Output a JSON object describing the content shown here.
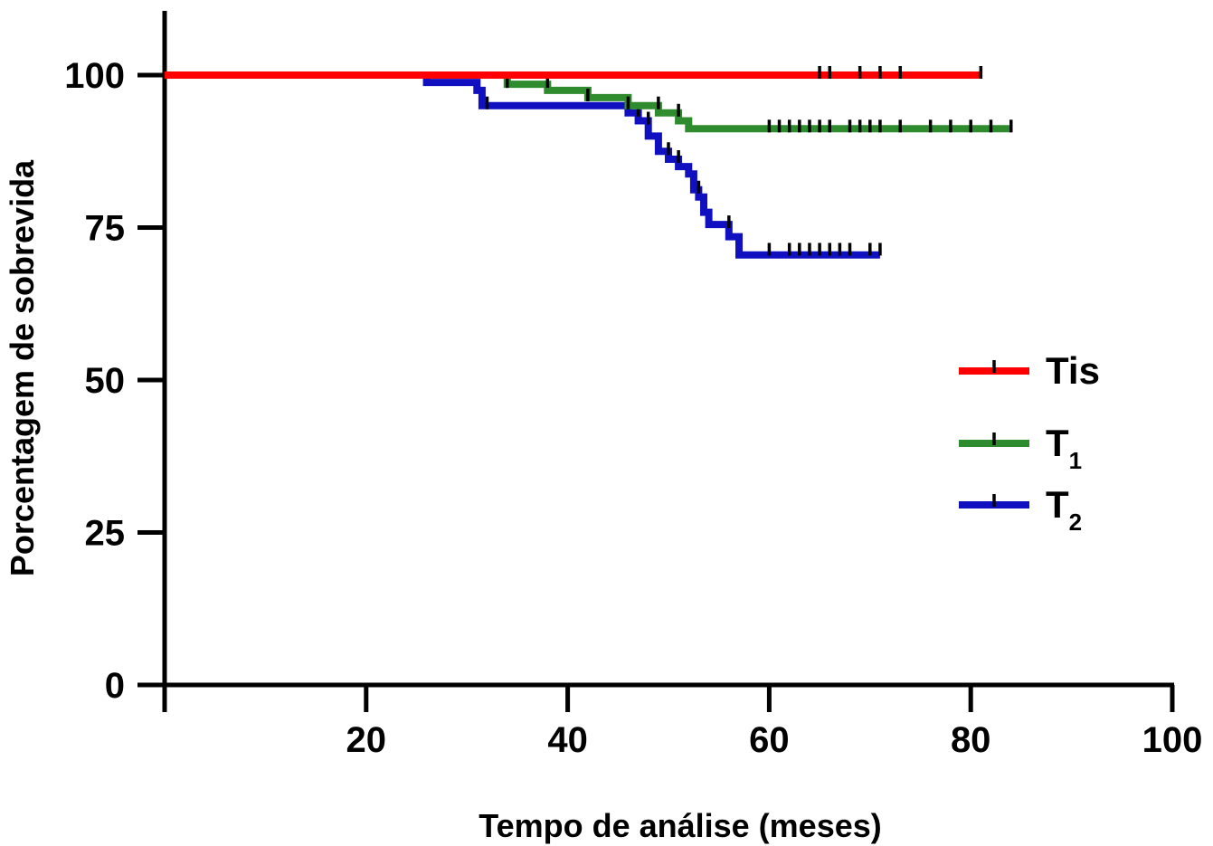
{
  "chart_data": {
    "type": "line",
    "step": true,
    "xlabel": "Tempo de análise (meses)",
    "ylabel": "Porcentagem de sobrevida",
    "xlim": [
      0,
      100
    ],
    "ylim": [
      0,
      110
    ],
    "xticks": [
      20,
      40,
      60,
      80,
      100
    ],
    "yticks": [
      0,
      25,
      50,
      75,
      100
    ],
    "grid": false,
    "legend_position": "right",
    "series": [
      {
        "name": "Tis",
        "color": "#ff0000",
        "points": [
          [
            0,
            100
          ],
          [
            81,
            100
          ]
        ],
        "censored": [
          [
            65,
            100
          ],
          [
            66,
            100
          ],
          [
            69,
            100
          ],
          [
            71,
            100
          ],
          [
            73,
            100
          ],
          [
            81,
            100
          ]
        ]
      },
      {
        "name": "T1",
        "legend_main": "T",
        "legend_sub": "1",
        "color": "#2e8b2e",
        "points": [
          [
            0,
            100
          ],
          [
            34,
            100
          ],
          [
            34,
            98.5
          ],
          [
            38,
            98.5
          ],
          [
            38,
            97.5
          ],
          [
            42,
            97.5
          ],
          [
            42,
            96.3
          ],
          [
            46,
            96.3
          ],
          [
            46,
            95
          ],
          [
            49,
            95
          ],
          [
            49,
            93.8
          ],
          [
            51,
            93.8
          ],
          [
            51,
            92.5
          ],
          [
            52,
            92.5
          ],
          [
            52,
            91.2
          ],
          [
            84,
            91.2
          ]
        ],
        "censored": [
          [
            34,
            98.5
          ],
          [
            38,
            98.5
          ],
          [
            42,
            96.3
          ],
          [
            46,
            95
          ],
          [
            49,
            95
          ],
          [
            51,
            93.8
          ],
          [
            60,
            91.2
          ],
          [
            61,
            91.2
          ],
          [
            62,
            91.2
          ],
          [
            63,
            91.2
          ],
          [
            64,
            91.2
          ],
          [
            65,
            91.2
          ],
          [
            66,
            91.2
          ],
          [
            68,
            91.2
          ],
          [
            69,
            91.2
          ],
          [
            70,
            91.2
          ],
          [
            71,
            91.2
          ],
          [
            73,
            91.2
          ],
          [
            76,
            91.2
          ],
          [
            78,
            91.2
          ],
          [
            80,
            91.2
          ],
          [
            82,
            91.2
          ],
          [
            84,
            91.2
          ]
        ]
      },
      {
        "name": "T2",
        "legend_main": "T",
        "legend_sub": "2",
        "color": "#1010c0",
        "points": [
          [
            0,
            100
          ],
          [
            26,
            100
          ],
          [
            26,
            98.8
          ],
          [
            31,
            98.8
          ],
          [
            31,
            97.5
          ],
          [
            31.5,
            97.5
          ],
          [
            31.5,
            95
          ],
          [
            46,
            95
          ],
          [
            46,
            93.8
          ],
          [
            47,
            93.8
          ],
          [
            47,
            92.5
          ],
          [
            48,
            92.5
          ],
          [
            48,
            90
          ],
          [
            49,
            90
          ],
          [
            49,
            87.5
          ],
          [
            50,
            87.5
          ],
          [
            50,
            86.2
          ],
          [
            51,
            86.2
          ],
          [
            51,
            85
          ],
          [
            52,
            85
          ],
          [
            52,
            83.8
          ],
          [
            52.5,
            83.8
          ],
          [
            52.5,
            81.2
          ],
          [
            53,
            81.2
          ],
          [
            53,
            80
          ],
          [
            53.5,
            80
          ],
          [
            53.5,
            77.5
          ],
          [
            54,
            77.5
          ],
          [
            54,
            75.5
          ],
          [
            56,
            75.5
          ],
          [
            56,
            73.5
          ],
          [
            57,
            73.5
          ],
          [
            57,
            70.5
          ],
          [
            71,
            70.5
          ]
        ],
        "censored": [
          [
            32,
            95
          ],
          [
            47,
            93.8
          ],
          [
            48,
            92.5
          ],
          [
            50,
            87.5
          ],
          [
            51,
            86.2
          ],
          [
            53,
            81.2
          ],
          [
            56,
            75.5
          ],
          [
            60,
            71
          ],
          [
            62,
            71
          ],
          [
            63,
            71
          ],
          [
            64,
            71
          ],
          [
            65,
            71
          ],
          [
            66,
            71
          ],
          [
            67,
            71
          ],
          [
            68,
            71
          ],
          [
            70,
            71
          ],
          [
            71,
            71
          ]
        ]
      }
    ]
  }
}
